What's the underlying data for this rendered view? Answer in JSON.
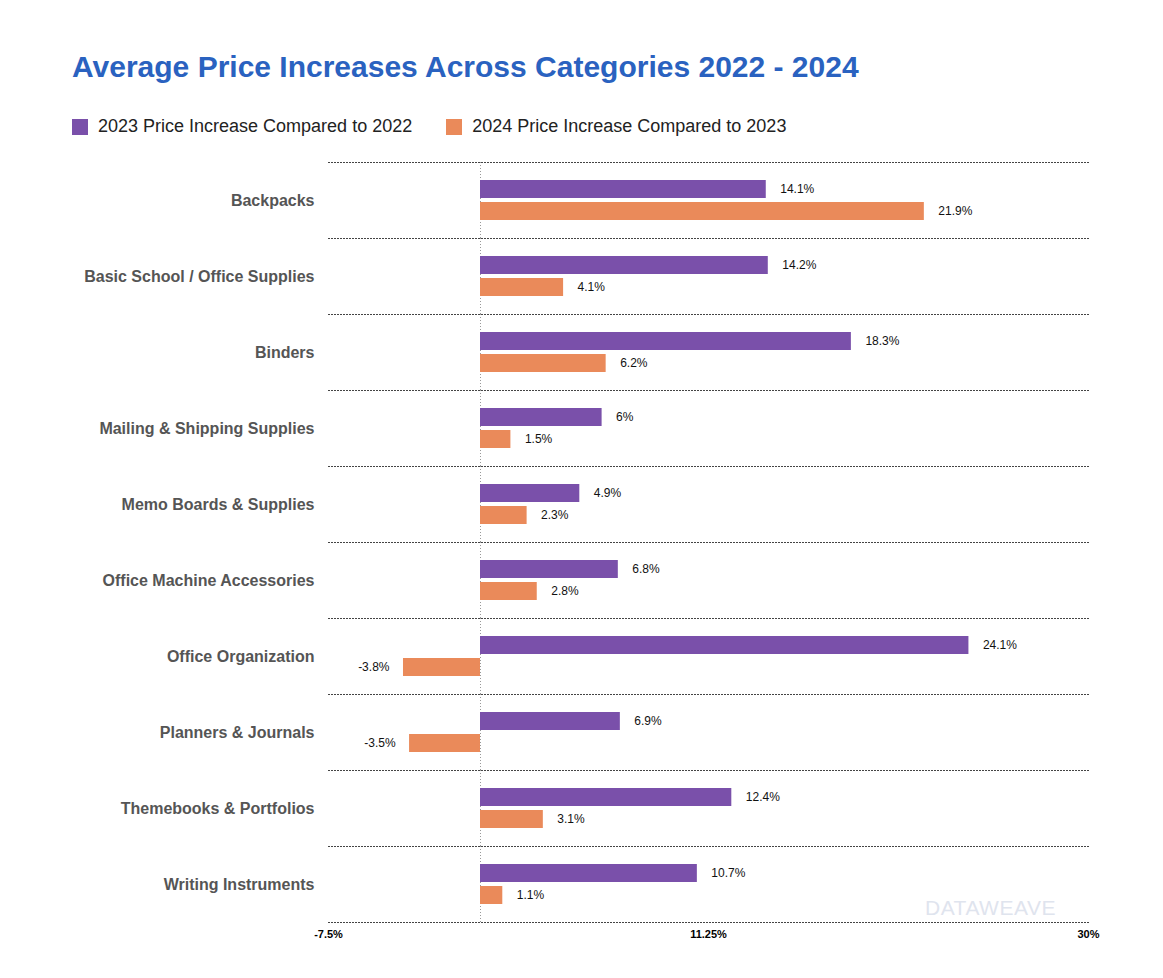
{
  "chart_data": {
    "type": "bar",
    "title": "Average Price Increases Across Categories 2022 - 2024",
    "annotation": "DATAWEAVE",
    "orientation": "horizontal",
    "legend": "top-left",
    "grid": false,
    "data_labels": true,
    "categories": [
      "Backpacks",
      "Basic School / Office Supplies",
      "Binders",
      "Mailing & Shipping Supplies",
      "Memo Boards & Supplies",
      "Office Machine Accessories",
      "Office Organization",
      "Planners & Journals",
      "Themebooks & Portfolios",
      "Writing Instruments"
    ],
    "series": [
      {
        "name": "2023 Price Increase Compared to 2022",
        "color": "#7a50aa",
        "values": [
          14.1,
          14.2,
          18.3,
          6,
          4.9,
          6.8,
          24.1,
          6.9,
          12.4,
          10.7
        ],
        "value_labels": [
          "14.1%",
          "14.2%",
          "18.3%",
          "6%",
          "4.9%",
          "6.8%",
          "24.1%",
          "6.9%",
          "12.4%",
          "10.7%"
        ]
      },
      {
        "name": "2024 Price Increase Compared to 2023",
        "color": "#ea8a5a",
        "values": [
          21.9,
          4.1,
          6.2,
          1.5,
          2.3,
          2.8,
          -3.8,
          -3.5,
          3.1,
          1.1
        ],
        "value_labels": [
          "21.9%",
          "4.1%",
          "6.2%",
          "1.5%",
          "2.3%",
          "2.8%",
          "-3.8%",
          "-3.5%",
          "3.1%",
          "1.1%"
        ]
      }
    ],
    "xlim": [
      -7.5,
      30
    ],
    "xticks": [
      {
        "value": -7.5,
        "label": "-7.5%"
      },
      {
        "value": 11.25,
        "label": "11.25%"
      },
      {
        "value": 30,
        "label": "30%"
      }
    ]
  }
}
